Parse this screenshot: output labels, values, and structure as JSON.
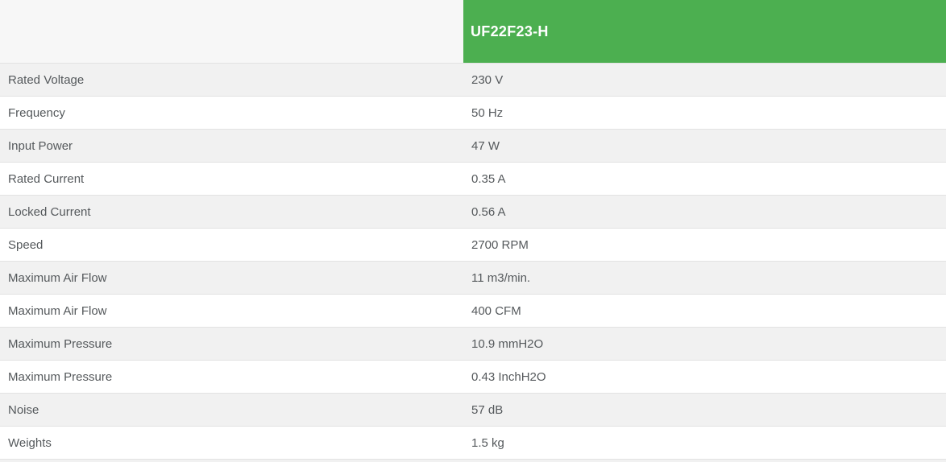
{
  "header": {
    "model": "UF22F23-H",
    "accent_color": "#4caf50"
  },
  "table": {
    "rows": [
      {
        "label": "Rated Voltage",
        "value": "230 V"
      },
      {
        "label": "Frequency",
        "value": "50 Hz"
      },
      {
        "label": "Input Power",
        "value": "47 W"
      },
      {
        "label": "Rated Current",
        "value": "0.35 A"
      },
      {
        "label": "Locked Current",
        "value": "0.56 A"
      },
      {
        "label": "Speed",
        "value": "2700 RPM"
      },
      {
        "label": "Maximum Air Flow",
        "value": "11 m3/min."
      },
      {
        "label": "Maximum Air Flow",
        "value": "400 CFM"
      },
      {
        "label": "Maximum Pressure",
        "value": "10.9 mmH2O"
      },
      {
        "label": "Maximum Pressure",
        "value": "0.43 InchH2O"
      },
      {
        "label": "Noise",
        "value": "57 dB"
      },
      {
        "label": "Weights",
        "value": "1.5 kg"
      }
    ]
  }
}
